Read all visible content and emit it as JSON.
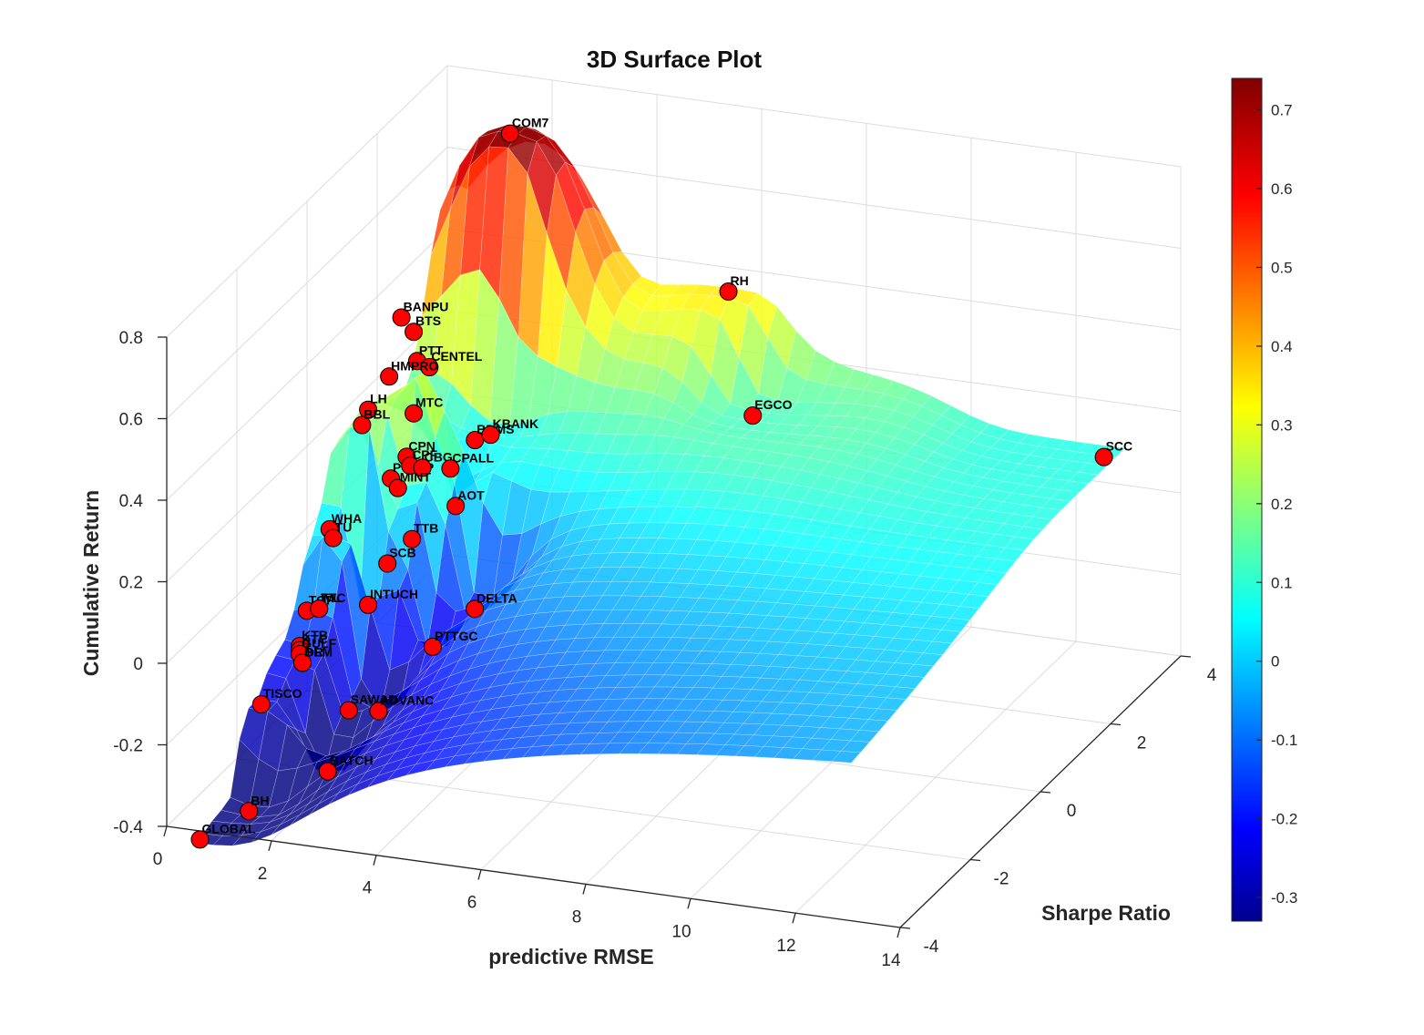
{
  "chart_data": {
    "type": "scatter",
    "subtype": "3d-surface-with-scatter",
    "title": "3D Surface Plot",
    "xlabel": "predictive RMSE",
    "ylabel": "Sharpe Ratio",
    "zlabel": "Cumulative Return",
    "xlim": [
      0,
      14
    ],
    "ylim": [
      -4,
      4
    ],
    "zlim": [
      -0.4,
      0.8
    ],
    "xticks": [
      "0",
      "2",
      "4",
      "6",
      "8",
      "10",
      "12",
      "14"
    ],
    "yticks": [
      "-4",
      "-2",
      "0",
      "2",
      "4"
    ],
    "zticks": [
      "-0.4",
      "-0.2",
      "0",
      "0.2",
      "0.4",
      "0.6",
      "0.8"
    ],
    "grid": true,
    "colormap": "jet",
    "colorbar": {
      "range": [
        -0.33,
        0.74
      ],
      "ticks": [
        "-0.3",
        "-0.2",
        "-0.1",
        "0",
        "0.1",
        "0.2",
        "0.3",
        "0.4",
        "0.5",
        "0.6",
        "0.7"
      ]
    },
    "marker_color": "#ff0000",
    "points": [
      {
        "name": "COM7",
        "x": 1.8,
        "y": 3.1,
        "z": 0.74
      },
      {
        "name": "BANPU",
        "x": 1.4,
        "y": 0.6,
        "z": 0.49
      },
      {
        "name": "BTS",
        "x": 1.5,
        "y": 0.8,
        "z": 0.44
      },
      {
        "name": "PTT",
        "x": 1.5,
        "y": 0.9,
        "z": 0.36
      },
      {
        "name": "CENTEL",
        "x": 1.6,
        "y": 1.1,
        "z": 0.33
      },
      {
        "name": "HMPRO",
        "x": 1.3,
        "y": 0.4,
        "z": 0.36
      },
      {
        "name": "LH",
        "x": 1.1,
        "y": 0.1,
        "z": 0.3
      },
      {
        "name": "BBL",
        "x": 1.05,
        "y": 0.0,
        "z": 0.27
      },
      {
        "name": "MTC",
        "x": 1.5,
        "y": 0.8,
        "z": 0.24
      },
      {
        "name": "CPN",
        "x": 1.5,
        "y": 0.6,
        "z": 0.15
      },
      {
        "name": "PTTEP",
        "x": 1.4,
        "y": 0.3,
        "z": 0.12
      },
      {
        "name": "CPF",
        "x": 1.5,
        "y": 0.7,
        "z": 0.12
      },
      {
        "name": "CBG",
        "x": 1.6,
        "y": 0.9,
        "z": 0.1
      },
      {
        "name": "BDMS",
        "x": 2.0,
        "y": 1.8,
        "z": 0.1
      },
      {
        "name": "KBANK",
        "x": 2.1,
        "y": 2.1,
        "z": 0.09
      },
      {
        "name": "MINT",
        "x": 1.4,
        "y": 0.5,
        "z": 0.08
      },
      {
        "name": "CPALL",
        "x": 1.8,
        "y": 1.4,
        "z": 0.06
      },
      {
        "name": "WHA",
        "x": 0.9,
        "y": -0.7,
        "z": 0.07
      },
      {
        "name": "TU",
        "x": 0.9,
        "y": -0.6,
        "z": 0.04
      },
      {
        "name": "TTB",
        "x": 1.6,
        "y": 0.6,
        "z": -0.05
      },
      {
        "name": "AOT",
        "x": 1.9,
        "y": 1.4,
        "z": -0.03
      },
      {
        "name": "SCC",
        "x": 12.8,
        "y": 3.6,
        "z": 0.1
      },
      {
        "name": "SCB",
        "x": 1.4,
        "y": 0.2,
        "z": -0.08
      },
      {
        "name": "TOP",
        "x": 0.8,
        "y": -1.2,
        "z": -0.09
      },
      {
        "name": "IVL",
        "x": 0.9,
        "y": -1.0,
        "z": -0.1
      },
      {
        "name": "TTC",
        "x": 0.9,
        "y": -1.0,
        "z": -0.1
      },
      {
        "name": "INTUCH",
        "x": 1.3,
        "y": -0.2,
        "z": -0.15
      },
      {
        "name": "KTB",
        "x": 0.8,
        "y": -1.4,
        "z": -0.16
      },
      {
        "name": "KTC",
        "x": 0.8,
        "y": -1.4,
        "z": -0.17
      },
      {
        "name": "GULF",
        "x": 0.8,
        "y": -1.4,
        "z": -0.18
      },
      {
        "name": "OR",
        "x": 0.85,
        "y": -1.4,
        "z": -0.2
      },
      {
        "name": "BEM",
        "x": 0.85,
        "y": -1.4,
        "z": -0.2
      },
      {
        "name": "RH",
        "x": 5.5,
        "y": 3.8,
        "z": 0.36
      },
      {
        "name": "EGCO",
        "x": 6.5,
        "y": 3.0,
        "z": 0.14
      },
      {
        "name": "TISCO",
        "x": 0.6,
        "y": -2.2,
        "z": -0.24
      },
      {
        "name": "DELTA",
        "x": 2.8,
        "y": 0.6,
        "z": -0.2
      },
      {
        "name": "PTTGC",
        "x": 2.4,
        "y": 0.0,
        "z": -0.25
      },
      {
        "name": "SAWAD",
        "x": 1.6,
        "y": -1.2,
        "z": -0.32
      },
      {
        "name": "ADVANC",
        "x": 1.9,
        "y": -0.8,
        "z": -0.35
      },
      {
        "name": "BATCH",
        "x": 1.6,
        "y": -1.8,
        "z": -0.42
      },
      {
        "name": "GLOBAL",
        "x": 0.5,
        "y": -3.8,
        "z": -0.44
      },
      {
        "name": "BH",
        "x": 0.9,
        "y": -3.0,
        "z": -0.43
      }
    ]
  }
}
